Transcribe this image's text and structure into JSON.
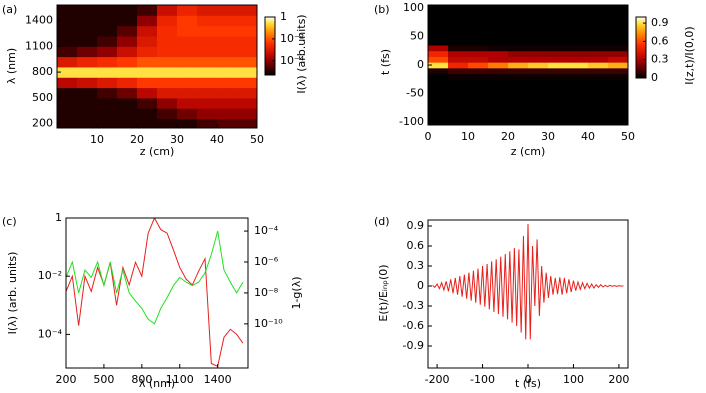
{
  "chart_data": [
    {
      "type": "heatmap",
      "panel_label": "(a)",
      "xlabel": "z (cm)",
      "ylabel": "λ (nm)",
      "colorbar_label": "I(λ) (arb.units)",
      "colorbar_log": true,
      "clim": [
        5e-06,
        1
      ],
      "colorbar_ticks": [
        1,
        {
          "value": 0.01,
          "label": "10⁻²"
        },
        {
          "value": 0.0001,
          "label": "10⁻⁴"
        }
      ],
      "xlim": [
        0,
        50
      ],
      "xticks": [
        10,
        20,
        30,
        40,
        50
      ],
      "ylim": [
        150,
        1580
      ],
      "yticks": [
        200,
        500,
        800,
        1100,
        1400
      ],
      "x": [
        2.5,
        7.5,
        12.5,
        17.5,
        22.5,
        27.5,
        32.5,
        37.5,
        42.5,
        47.5
      ],
      "y": [
        200,
        320,
        440,
        560,
        680,
        800,
        920,
        1040,
        1160,
        1280,
        1400,
        1520
      ],
      "z": [
        [
          1e-05,
          1e-05,
          1e-05,
          1e-05,
          1e-05,
          1e-05,
          1e-05,
          2e-05,
          3e-05,
          3e-05
        ],
        [
          1e-05,
          1e-05,
          1e-05,
          1e-05,
          1e-05,
          2e-05,
          5e-05,
          0.0001,
          0.0001,
          0.0001
        ],
        [
          1e-05,
          1e-05,
          1e-05,
          1e-05,
          2e-05,
          0.0001,
          0.0003,
          0.0003,
          0.0003,
          0.0003
        ],
        [
          1e-05,
          1e-05,
          2e-05,
          5e-05,
          0.0003,
          0.001,
          0.001,
          0.001,
          0.001,
          0.001
        ],
        [
          0.0003,
          0.0005,
          0.001,
          0.002,
          0.005,
          0.005,
          0.005,
          0.005,
          0.005,
          0.005
        ],
        [
          0.3,
          0.3,
          0.3,
          0.3,
          0.3,
          0.3,
          0.3,
          0.3,
          0.3,
          0.3
        ],
        [
          0.001,
          0.002,
          0.003,
          0.005,
          0.01,
          0.01,
          0.01,
          0.01,
          0.01,
          0.01
        ],
        [
          2e-05,
          5e-05,
          0.0001,
          0.0005,
          0.002,
          0.003,
          0.003,
          0.003,
          0.003,
          0.003
        ],
        [
          1e-05,
          1e-05,
          2e-05,
          0.0001,
          0.001,
          0.003,
          0.003,
          0.003,
          0.003,
          0.003
        ],
        [
          1e-05,
          1e-05,
          1e-05,
          3e-05,
          0.0005,
          0.003,
          0.005,
          0.005,
          0.005,
          0.005
        ],
        [
          1e-05,
          1e-05,
          1e-05,
          1e-05,
          0.0001,
          0.002,
          0.005,
          0.003,
          0.003,
          0.003
        ],
        [
          1e-05,
          1e-05,
          1e-05,
          1e-05,
          2e-05,
          0.0005,
          0.002,
          0.001,
          0.001,
          0.001
        ]
      ]
    },
    {
      "type": "heatmap",
      "panel_label": "(b)",
      "xlabel": "z (cm)",
      "ylabel": "t (fs)",
      "colorbar_label": "I(z,t)/I(0,0)",
      "colorbar_log": false,
      "clim": [
        0,
        1
      ],
      "colorbar_ticks": [
        0,
        0.3,
        0.6,
        0.9
      ],
      "xlim": [
        0,
        50
      ],
      "xticks": [
        0,
        10,
        20,
        30,
        40,
        50
      ],
      "ylim": [
        -105,
        105
      ],
      "yticks": [
        -100,
        -50,
        0,
        50,
        100
      ],
      "x": [
        2.5,
        7.5,
        12.5,
        17.5,
        22.5,
        27.5,
        32.5,
        37.5,
        42.5,
        47.5
      ],
      "y": [
        -100,
        -90,
        -80,
        -70,
        -60,
        -50,
        -40,
        -30,
        -20,
        -10,
        0,
        10,
        20,
        30,
        40,
        50,
        60,
        70,
        80,
        90,
        100
      ],
      "z": [
        [
          0,
          0,
          0,
          0,
          0,
          0,
          0,
          0,
          0,
          0
        ],
        [
          0,
          0,
          0,
          0,
          0,
          0,
          0,
          0,
          0,
          0
        ],
        [
          0,
          0,
          0,
          0,
          0,
          0,
          0,
          0,
          0,
          0
        ],
        [
          0,
          0,
          0,
          0,
          0,
          0,
          0,
          0,
          0,
          0
        ],
        [
          0,
          0,
          0,
          0,
          0,
          0,
          0,
          0,
          0,
          0
        ],
        [
          0,
          0,
          0,
          0,
          0,
          0,
          0,
          0,
          0,
          0
        ],
        [
          0,
          0,
          0,
          0,
          0,
          0,
          0,
          0,
          0,
          0
        ],
        [
          0,
          0,
          0,
          0,
          0,
          0,
          0,
          0,
          0,
          0
        ],
        [
          0,
          0.02,
          0.02,
          0.02,
          0.02,
          0.02,
          0.02,
          0.02,
          0.02,
          0.02
        ],
        [
          0.05,
          0.1,
          0.1,
          0.1,
          0.1,
          0.1,
          0.1,
          0.1,
          0.1,
          0.1
        ],
        [
          0.9,
          0.5,
          0.6,
          0.7,
          0.8,
          0.85,
          0.9,
          0.9,
          0.85,
          0.8
        ],
        [
          0.6,
          0.35,
          0.35,
          0.3,
          0.3,
          0.3,
          0.3,
          0.3,
          0.3,
          0.35
        ],
        [
          0.5,
          0.3,
          0.3,
          0.3,
          0.25,
          0.25,
          0.25,
          0.25,
          0.25,
          0.25
        ],
        [
          0.3,
          0.05,
          0.05,
          0.03,
          0.03,
          0.03,
          0.03,
          0.03,
          0.03,
          0.03
        ],
        [
          0,
          0,
          0,
          0,
          0,
          0,
          0,
          0,
          0,
          0
        ],
        [
          0,
          0,
          0,
          0,
          0,
          0,
          0,
          0,
          0,
          0
        ],
        [
          0,
          0,
          0,
          0,
          0,
          0,
          0,
          0,
          0,
          0
        ],
        [
          0,
          0,
          0,
          0,
          0,
          0,
          0,
          0,
          0,
          0
        ],
        [
          0,
          0,
          0,
          0,
          0,
          0,
          0,
          0,
          0,
          0
        ],
        [
          0,
          0,
          0,
          0,
          0,
          0,
          0,
          0,
          0,
          0
        ],
        [
          0,
          0,
          0,
          0,
          0,
          0,
          0,
          0,
          0,
          0
        ]
      ]
    },
    {
      "type": "line",
      "panel_label": "(c)",
      "xlabel": "λ (nm)",
      "ylabel": "I(λ) (arb. units)",
      "y2label": "1-g(λ)",
      "xlim": [
        200,
        1640
      ],
      "xticks": [
        200,
        500,
        800,
        1100,
        1400
      ],
      "ylog": true,
      "ylim": [
        7e-06,
        1
      ],
      "yticks": [
        1,
        {
          "value": 0.01,
          "label": "10⁻²"
        },
        {
          "value": 0.0001,
          "label": "10⁻⁴"
        }
      ],
      "y2log": true,
      "y2lim": [
        1.4e-13,
        0.0007
      ],
      "y2ticks": [
        {
          "value": 0.0001,
          "label": "10⁻⁴"
        },
        {
          "value": 1e-06,
          "label": "10⁻⁶"
        },
        {
          "value": 1e-08,
          "label": "10⁻⁸"
        },
        {
          "value": 1e-10,
          "label": "10⁻¹⁰"
        }
      ],
      "x": [
        200,
        250,
        300,
        350,
        400,
        450,
        500,
        550,
        600,
        650,
        700,
        750,
        800,
        850,
        900,
        950,
        1000,
        1050,
        1100,
        1150,
        1200,
        1250,
        1300,
        1350,
        1400,
        1450,
        1500,
        1550,
        1600
      ],
      "series": [
        {
          "color": "#e8201c",
          "axis": "y",
          "values": [
            0.003,
            0.01,
            0.0002,
            0.01,
            0.003,
            0.02,
            0.005,
            0.03,
            0.001,
            0.02,
            0.005,
            0.03,
            0.01,
            0.3,
            1,
            0.4,
            0.3,
            0.08,
            0.02,
            0.008,
            0.005,
            0.015,
            0.04,
            1e-05,
            8e-06,
            8e-05,
            0.00015,
            0.0001,
            5e-05
          ]
        },
        {
          "color": "#22e022",
          "axis": "y2",
          "values": [
            1e-07,
            1e-06,
            1e-08,
            3e-07,
            1e-07,
            1e-06,
            3e-08,
            1e-06,
            1e-08,
            3e-07,
            1e-08,
            3e-09,
            1e-09,
            2e-10,
            1e-10,
            1e-09,
            5e-09,
            3e-08,
            1e-07,
            5e-08,
            3e-08,
            5e-08,
            2e-07,
            3e-06,
            0.0001,
            3e-07,
            5e-08,
            1e-08,
            5e-08
          ]
        }
      ]
    },
    {
      "type": "line",
      "panel_label": "(d)",
      "xlabel": "t (fs)",
      "ylabel": "E(t)/Eᵢₙₚ(0)",
      "xlim": [
        -220,
        220
      ],
      "xticks": [
        -200,
        -100,
        0,
        100,
        200
      ],
      "ylim": [
        -1.23,
        0.99
      ],
      "yticks": [
        0.9,
        0.6,
        0.3,
        0,
        -0.3,
        -0.6,
        -0.9
      ],
      "x": [
        -210,
        -205,
        -200,
        -195,
        -190,
        -185,
        -180,
        -175,
        -170,
        -165,
        -160,
        -155,
        -150,
        -145,
        -140,
        -135,
        -130,
        -125,
        -120,
        -115,
        -110,
        -105,
        -100,
        -95,
        -90,
        -85,
        -80,
        -75,
        -70,
        -65,
        -60,
        -55,
        -50,
        -45,
        -40,
        -35,
        -30,
        -25,
        -20,
        -15,
        -10,
        -5,
        0,
        5,
        10,
        15,
        20,
        25,
        30,
        35,
        40,
        45,
        50,
        55,
        60,
        65,
        70,
        75,
        80,
        85,
        90,
        95,
        100,
        105,
        110,
        115,
        120,
        125,
        130,
        135,
        140,
        145,
        150,
        155,
        160,
        165,
        170,
        175,
        180,
        185,
        190,
        195,
        200,
        205,
        210
      ],
      "series": [
        {
          "color": "#e8201c",
          "axis": "y",
          "values": [
            0.01,
            -0.02,
            0.03,
            -0.04,
            0.05,
            -0.06,
            0.07,
            -0.08,
            0.1,
            -0.11,
            0.12,
            -0.13,
            0.15,
            -0.16,
            0.17,
            -0.19,
            0.2,
            -0.22,
            0.23,
            -0.25,
            0.26,
            -0.28,
            0.3,
            -0.31,
            0.33,
            -0.35,
            0.37,
            -0.39,
            0.4,
            -0.42,
            0.44,
            -0.46,
            0.48,
            -0.5,
            0.52,
            -0.55,
            0.57,
            -0.6,
            0.55,
            -0.7,
            0.75,
            -0.8,
            0.93,
            -0.8,
            0.6,
            -0.3,
            0.7,
            -0.45,
            0.3,
            -0.25,
            0.2,
            -0.18,
            0.15,
            -0.13,
            0.12,
            -0.12,
            0.13,
            -0.13,
            0.12,
            -0.11,
            0.1,
            -0.09,
            0.08,
            -0.07,
            0.06,
            -0.05,
            0.05,
            -0.04,
            0.04,
            -0.03,
            0.03,
            -0.03,
            0.02,
            -0.02,
            0.02,
            -0.015,
            0.01,
            -0.01,
            0.01,
            -0.005,
            0.005,
            -0.005,
            0.003,
            -0.002,
            0.001
          ]
        }
      ]
    }
  ]
}
